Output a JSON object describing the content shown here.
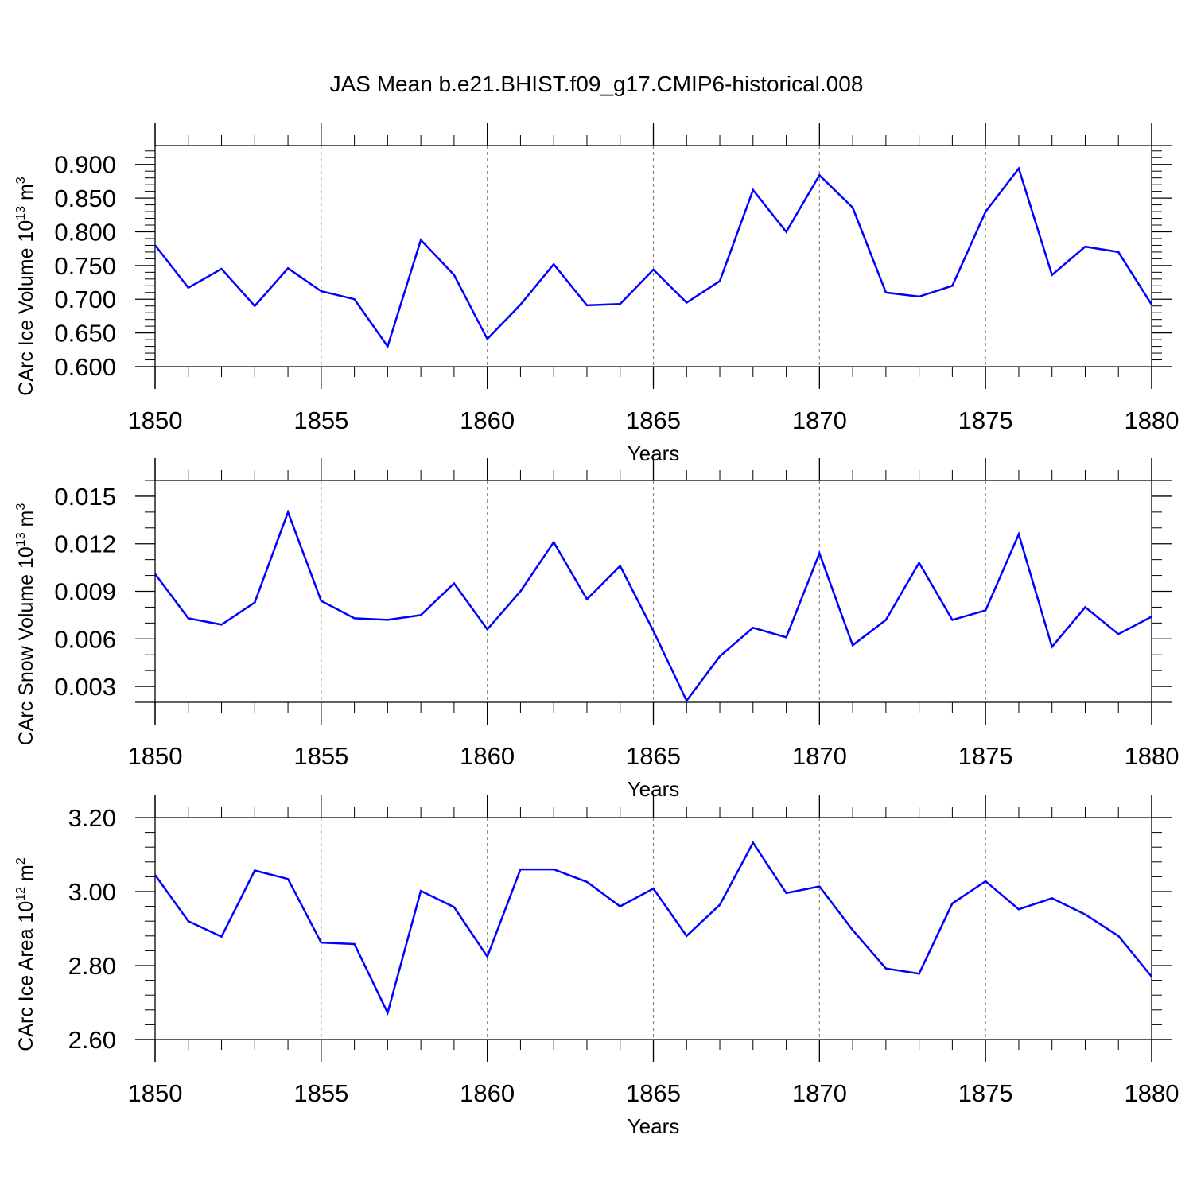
{
  "title": "JAS Mean b.e21.BHIST.f09_g17.CMIP6-historical.008",
  "line_color": "#0000ff",
  "chart_data": [
    {
      "type": "line",
      "ylabel_main": "CArc Ice Volume 10",
      "ylabel_exp": "13",
      "ylabel_unit": " m",
      "ylabel_unit_exp": "3",
      "xlabel": "Years",
      "xlim": [
        1850,
        1880
      ],
      "ylim": [
        0.6,
        0.928
      ],
      "yticks": [
        0.6,
        0.65,
        0.7,
        0.75,
        0.8,
        0.85,
        0.9
      ],
      "ytick_labels": [
        "0.600",
        "0.650",
        "0.700",
        "0.750",
        "0.800",
        "0.850",
        "0.900"
      ],
      "yminor_step": 0.01,
      "xticks": [
        1850,
        1855,
        1860,
        1865,
        1870,
        1875,
        1880
      ],
      "xtick_labels": [
        "1850",
        "1855",
        "1860",
        "1865",
        "1870",
        "1875",
        "1880"
      ],
      "grid_x": true,
      "x": [
        1850,
        1851,
        1852,
        1853,
        1854,
        1855,
        1856,
        1857,
        1858,
        1859,
        1860,
        1861,
        1862,
        1863,
        1864,
        1865,
        1866,
        1867,
        1868,
        1869,
        1870,
        1871,
        1872,
        1873,
        1874,
        1875,
        1876,
        1877,
        1878,
        1879,
        1880
      ],
      "values": [
        0.78,
        0.717,
        0.745,
        0.69,
        0.746,
        0.712,
        0.7,
        0.63,
        0.788,
        0.736,
        0.641,
        0.692,
        0.752,
        0.691,
        0.693,
        0.744,
        0.695,
        0.727,
        0.862,
        0.8,
        0.884,
        0.836,
        0.71,
        0.704,
        0.72,
        0.83,
        0.894,
        0.736,
        0.778,
        0.77,
        0.692
      ]
    },
    {
      "type": "line",
      "ylabel_main": "CArc Snow Volume 10",
      "ylabel_exp": "13",
      "ylabel_unit": " m",
      "ylabel_unit_exp": "3",
      "xlabel": "Years",
      "xlim": [
        1850,
        1880
      ],
      "ylim": [
        0.002,
        0.016
      ],
      "yticks": [
        0.003,
        0.006,
        0.009,
        0.012,
        0.015
      ],
      "ytick_labels": [
        "0.003",
        "0.006",
        "0.009",
        "0.012",
        "0.015"
      ],
      "yminor_step": 0.001,
      "xticks": [
        1850,
        1855,
        1860,
        1865,
        1870,
        1875,
        1880
      ],
      "xtick_labels": [
        "1850",
        "1855",
        "1860",
        "1865",
        "1870",
        "1875",
        "1880"
      ],
      "grid_x": true,
      "x": [
        1850,
        1851,
        1852,
        1853,
        1854,
        1855,
        1856,
        1857,
        1858,
        1859,
        1860,
        1861,
        1862,
        1863,
        1864,
        1865,
        1866,
        1867,
        1868,
        1869,
        1870,
        1871,
        1872,
        1873,
        1874,
        1875,
        1876,
        1877,
        1878,
        1879,
        1880
      ],
      "values": [
        0.0101,
        0.0073,
        0.0069,
        0.0083,
        0.014,
        0.0084,
        0.0073,
        0.0072,
        0.0075,
        0.0095,
        0.0066,
        0.009,
        0.0121,
        0.0085,
        0.0106,
        0.0065,
        0.0021,
        0.0049,
        0.0067,
        0.0061,
        0.0114,
        0.0056,
        0.0072,
        0.0108,
        0.0072,
        0.0078,
        0.0126,
        0.0055,
        0.008,
        0.0063,
        0.0074
      ]
    },
    {
      "type": "line",
      "ylabel_main": "CArc Ice Area 10",
      "ylabel_exp": "12",
      "ylabel_unit": " m",
      "ylabel_unit_exp": "2",
      "xlabel": "Years",
      "xlim": [
        1850,
        1880
      ],
      "ylim": [
        2.6,
        3.2
      ],
      "yticks": [
        2.6,
        2.8,
        3.0,
        3.2
      ],
      "ytick_labels": [
        "2.60",
        "2.80",
        "3.00",
        "3.20"
      ],
      "yminor_step": 0.04,
      "xticks": [
        1850,
        1855,
        1860,
        1865,
        1870,
        1875,
        1880
      ],
      "xtick_labels": [
        "1850",
        "1855",
        "1860",
        "1865",
        "1870",
        "1875",
        "1880"
      ],
      "grid_x": true,
      "x": [
        1850,
        1851,
        1852,
        1853,
        1854,
        1855,
        1856,
        1857,
        1858,
        1859,
        1860,
        1861,
        1862,
        1863,
        1864,
        1865,
        1866,
        1867,
        1868,
        1869,
        1870,
        1871,
        1872,
        1873,
        1874,
        1875,
        1876,
        1877,
        1878,
        1879,
        1880
      ],
      "values": [
        3.045,
        2.92,
        2.878,
        3.057,
        3.034,
        2.862,
        2.858,
        2.672,
        3.002,
        2.958,
        2.824,
        3.06,
        3.06,
        3.026,
        2.96,
        3.008,
        2.88,
        2.964,
        3.132,
        2.996,
        3.014,
        2.896,
        2.792,
        2.778,
        2.968,
        3.028,
        2.952,
        2.982,
        2.938,
        2.88,
        2.77
      ]
    }
  ]
}
